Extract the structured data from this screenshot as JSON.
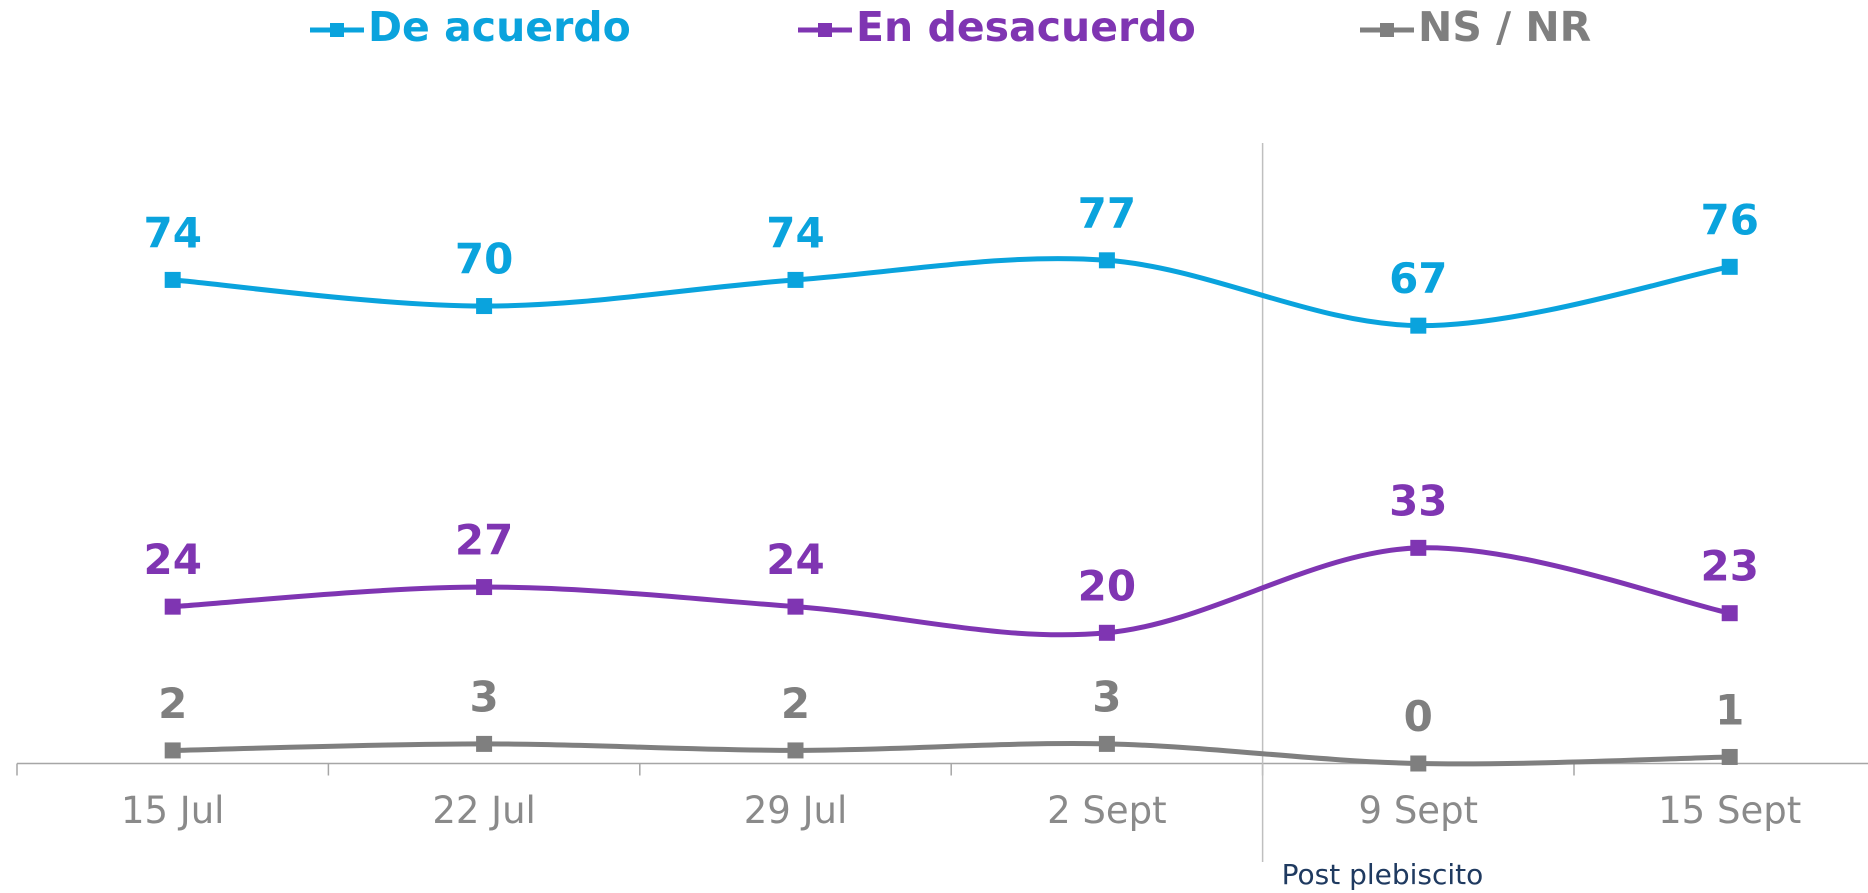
{
  "chart_data": {
    "type": "line",
    "categories": [
      "15 Jul",
      "22 Jul",
      "29 Jul",
      "2 Sept",
      "9 Sept",
      "15 Sept"
    ],
    "series": [
      {
        "name": "De acuerdo",
        "color": "#0aa3dd",
        "values": [
          74,
          70,
          74,
          77,
          67,
          76
        ]
      },
      {
        "name": "En desacuerdo",
        "color": "#7f35b2",
        "values": [
          24,
          27,
          24,
          20,
          33,
          23
        ]
      },
      {
        "name": "NS / NR",
        "color": "#7f7f7f",
        "values": [
          2,
          3,
          2,
          3,
          0,
          1
        ]
      }
    ],
    "ylim": [
      0,
      100
    ],
    "annotation": "Post plebiscito",
    "legend": "top",
    "smooth": true
  }
}
